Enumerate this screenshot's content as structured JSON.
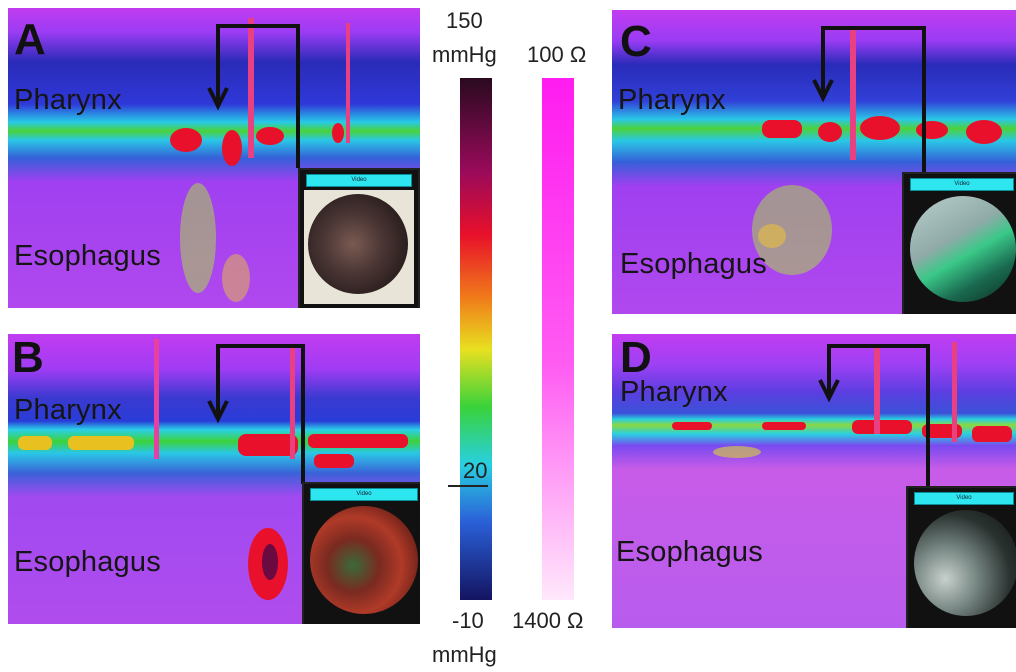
{
  "panels": [
    {
      "letter": "A",
      "pharynx": "Pharynx",
      "esophagus": "Esophagus",
      "video_header": "Video"
    },
    {
      "letter": "B",
      "pharynx": "Pharynx",
      "esophagus": "Esophagus",
      "video_header": "Video"
    },
    {
      "letter": "C",
      "pharynx": "Pharynx",
      "esophagus": "Esophagus",
      "video_header": "Video"
    },
    {
      "letter": "D",
      "pharynx": "Pharynx",
      "esophagus": "Esophagus",
      "video_header": "Video"
    }
  ],
  "pressure_scale": {
    "max": "150",
    "max_unit": "mmHg",
    "mid": "20",
    "min": "-10",
    "min_unit": "mmHg"
  },
  "impedance_scale": {
    "top": "100 Ω",
    "bottom": "1400 Ω"
  },
  "colors": {
    "background_magenta": "#b43cf0",
    "band_blue": "#1e2fd0",
    "high_pressure_red": "#e8102a",
    "video_header": "#2ee6f0"
  }
}
